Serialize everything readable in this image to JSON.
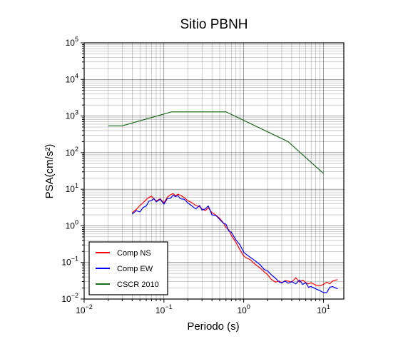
{
  "chart_data": {
    "type": "line",
    "title": "Sitio PBNH",
    "xlabel": "Periodo (s)",
    "ylabel": "PSA(cm/s²)",
    "x_scale": "log",
    "y_scale": "log",
    "xlim": [
      0.01,
      18
    ],
    "ylim": [
      0.01,
      100000
    ],
    "x_ticks": [
      {
        "value": 0.01,
        "base": "10",
        "exp": "−2"
      },
      {
        "value": 0.1,
        "base": "10",
        "exp": "−1"
      },
      {
        "value": 1,
        "base": "10",
        "exp": "0"
      },
      {
        "value": 10,
        "base": "10",
        "exp": "1"
      }
    ],
    "y_ticks": [
      {
        "value": 0.01,
        "base": "10",
        "exp": "−2"
      },
      {
        "value": 0.1,
        "base": "10",
        "exp": "−1"
      },
      {
        "value": 1,
        "base": "10",
        "exp": "0"
      },
      {
        "value": 10,
        "base": "10",
        "exp": "1"
      },
      {
        "value": 100,
        "base": "10",
        "exp": "2"
      },
      {
        "value": 1000,
        "base": "10",
        "exp": "3"
      },
      {
        "value": 10000,
        "base": "10",
        "exp": "4"
      },
      {
        "value": 100000,
        "base": "10",
        "exp": "5"
      }
    ],
    "grid": true,
    "legend_position": "bottom-left",
    "series": [
      {
        "name": "Comp NS",
        "color": "#ff0000",
        "x": [
          0.04,
          0.045,
          0.05,
          0.055,
          0.06,
          0.065,
          0.07,
          0.075,
          0.08,
          0.09,
          0.1,
          0.11,
          0.12,
          0.13,
          0.14,
          0.15,
          0.16,
          0.18,
          0.2,
          0.22,
          0.25,
          0.28,
          0.3,
          0.33,
          0.36,
          0.4,
          0.45,
          0.5,
          0.55,
          0.6,
          0.65,
          0.7,
          0.8,
          0.9,
          1.0,
          1.1,
          1.2,
          1.4,
          1.6,
          1.8,
          2.0,
          2.2,
          2.5,
          2.8,
          3.0,
          3.3,
          3.6,
          4.0,
          4.5,
          5.0,
          5.5,
          6.0,
          6.5,
          7.0,
          8.0,
          9.0,
          10.0,
          11.0,
          12.0,
          13.0,
          15.0
        ],
        "y": [
          2.3,
          2.8,
          3.6,
          4.3,
          5.2,
          6.0,
          6.4,
          5.4,
          4.8,
          5.5,
          4.2,
          6.0,
          7.0,
          7.6,
          6.6,
          7.3,
          6.9,
          5.9,
          4.8,
          4.4,
          3.6,
          3.3,
          2.9,
          2.6,
          3.1,
          2.3,
          1.95,
          1.6,
          1.25,
          0.9,
          0.78,
          0.55,
          0.35,
          0.22,
          0.15,
          0.13,
          0.12,
          0.088,
          0.071,
          0.056,
          0.046,
          0.035,
          0.029,
          0.031,
          0.027,
          0.032,
          0.031,
          0.029,
          0.038,
          0.029,
          0.033,
          0.028,
          0.026,
          0.028,
          0.024,
          0.023,
          0.025,
          0.029,
          0.026,
          0.031,
          0.034
        ]
      },
      {
        "name": "Comp EW",
        "color": "#0000ff",
        "x": [
          0.04,
          0.045,
          0.05,
          0.055,
          0.06,
          0.065,
          0.07,
          0.075,
          0.08,
          0.09,
          0.1,
          0.11,
          0.12,
          0.13,
          0.14,
          0.15,
          0.16,
          0.18,
          0.2,
          0.22,
          0.25,
          0.28,
          0.3,
          0.33,
          0.36,
          0.4,
          0.45,
          0.5,
          0.55,
          0.6,
          0.65,
          0.7,
          0.8,
          0.9,
          1.0,
          1.1,
          1.2,
          1.4,
          1.6,
          1.8,
          2.0,
          2.2,
          2.5,
          2.8,
          3.0,
          3.3,
          3.6,
          4.0,
          4.5,
          5.0,
          5.5,
          6.0,
          6.5,
          7.0,
          8.0,
          9.0,
          10.0,
          11.0,
          12.0,
          13.0,
          15.0
        ],
        "y": [
          2.1,
          2.6,
          2.4,
          3.2,
          3.5,
          4.7,
          4.9,
          5.6,
          4.5,
          5.3,
          3.9,
          5.5,
          5.6,
          6.8,
          6.3,
          6.7,
          5.5,
          5.3,
          4.2,
          3.6,
          2.9,
          3.6,
          2.7,
          2.9,
          3.5,
          2.0,
          1.9,
          1.5,
          1.2,
          1.1,
          0.72,
          0.67,
          0.41,
          0.3,
          0.19,
          0.16,
          0.14,
          0.11,
          0.087,
          0.065,
          0.058,
          0.047,
          0.037,
          0.029,
          0.028,
          0.031,
          0.027,
          0.03,
          0.026,
          0.033,
          0.025,
          0.028,
          0.021,
          0.022,
          0.019,
          0.017,
          0.015,
          0.015,
          0.021,
          0.022,
          0.019
        ]
      },
      {
        "name": "CSCR 2010",
        "color": "#1a6b1a",
        "x": [
          0.02,
          0.03,
          0.125,
          0.6,
          3.6,
          10.0
        ],
        "y": [
          540,
          540,
          1300,
          1300,
          200,
          27
        ]
      }
    ]
  }
}
